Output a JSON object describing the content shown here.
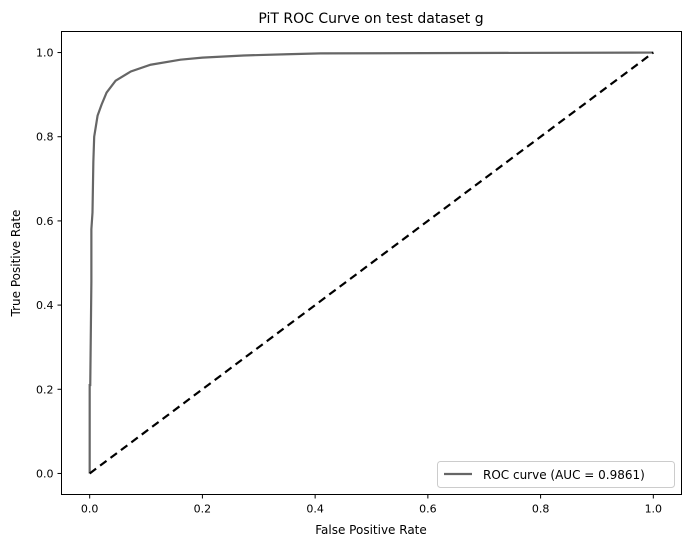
{
  "chart_data": {
    "type": "line",
    "title": "PiT ROC Curve on test dataset g",
    "xlabel": "False Positive Rate",
    "ylabel": "True Positive Rate",
    "xlim": [
      -0.05,
      1.05
    ],
    "ylim": [
      -0.05,
      1.05
    ],
    "xticks": [
      "0.0",
      "0.2",
      "0.4",
      "0.6",
      "0.8",
      "1.0"
    ],
    "yticks": [
      "0.0",
      "0.2",
      "0.4",
      "0.6",
      "0.8",
      "1.0"
    ],
    "grid": false,
    "legend_position": "lower-right",
    "series": [
      {
        "name": "ROC curve (AUC = 0.9861)",
        "color": "#666666",
        "style": "solid",
        "x": [
          0,
          0,
          0.001,
          0.003,
          0.003,
          0.005,
          0.0065,
          0.008,
          0.014,
          0.021,
          0.03,
          0.046,
          0.073,
          0.108,
          0.161,
          0.2,
          0.273,
          0.35,
          0.41,
          1.0
        ],
        "y": [
          0,
          0.21,
          0.21,
          0.455,
          0.58,
          0.62,
          0.74,
          0.8,
          0.85,
          0.876,
          0.905,
          0.933,
          0.955,
          0.971,
          0.983,
          0.988,
          0.993,
          0.996,
          0.998,
          1.0
        ]
      },
      {
        "color": "#000000",
        "style": "dashed",
        "x": [
          0,
          1
        ],
        "y": [
          0,
          1
        ]
      }
    ]
  }
}
